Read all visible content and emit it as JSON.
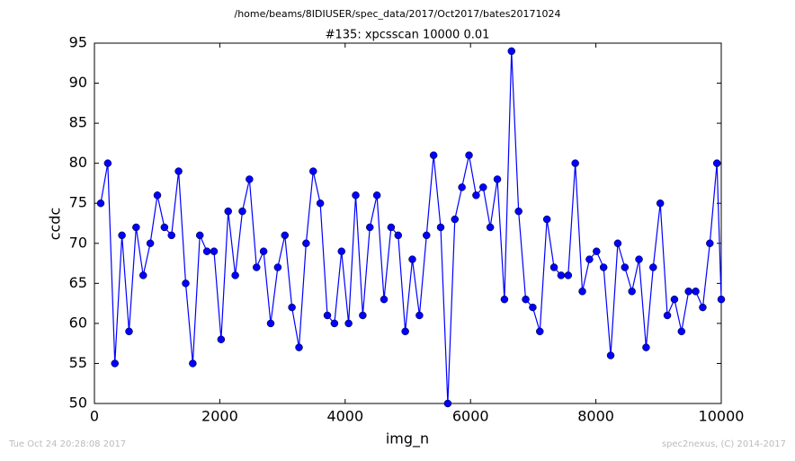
{
  "chart_data": {
    "type": "line",
    "suptitle": "/home/beams/8IDIUSER/spec_data/2017/Oct2017/bates20171024",
    "title": "#135: xpcsscan 10000 0.01",
    "x_label": "img_n",
    "y_label": "ccdc",
    "footer_left": "Tue Oct 24 20:28:08 2017",
    "footer_right": "spec2nexus, (C) 2014-2017",
    "xlim": [
      0,
      10000
    ],
    "xticks": [
      0,
      2000,
      4000,
      6000,
      8000,
      10000
    ],
    "ylim": [
      50,
      95
    ],
    "yticks": [
      50,
      55,
      60,
      65,
      70,
      75,
      80,
      85,
      90,
      95
    ],
    "x": [
      100,
      213,
      326,
      439,
      552,
      665,
      778,
      891,
      1004,
      1117,
      1230,
      1343,
      1456,
      1569,
      1682,
      1795,
      1908,
      2021,
      2134,
      2247,
      2360,
      2473,
      2586,
      2699,
      2812,
      2925,
      3038,
      3151,
      3264,
      3377,
      3490,
      3603,
      3716,
      3829,
      3942,
      4055,
      4168,
      4281,
      4394,
      4507,
      4620,
      4733,
      4846,
      4959,
      5072,
      5185,
      5298,
      5411,
      5524,
      5637,
      5750,
      5863,
      5976,
      6089,
      6202,
      6315,
      6428,
      6541,
      6654,
      6767,
      6880,
      6993,
      7106,
      7219,
      7332,
      7445,
      7558,
      7671,
      7784,
      7897,
      8010,
      8123,
      8236,
      8349,
      8462,
      8575,
      8688,
      8801,
      8914,
      9027,
      9140,
      9253,
      9366,
      9479,
      9592,
      9705,
      9818,
      9931,
      10000
    ],
    "series": [
      {
        "name": "ccdc",
        "color": "#0000ff",
        "values": [
          75,
          80,
          55,
          71,
          59,
          72,
          66,
          70,
          76,
          72,
          71,
          79,
          65,
          55,
          71,
          69,
          69,
          58,
          74,
          66,
          74,
          78,
          67,
          69,
          60,
          67,
          71,
          62,
          57,
          70,
          79,
          75,
          61,
          60,
          69,
          60,
          76,
          61,
          72,
          76,
          63,
          72,
          71,
          59,
          68,
          61,
          71,
          81,
          72,
          50,
          73,
          77,
          81,
          76,
          77,
          72,
          78,
          63,
          94,
          74,
          63,
          62,
          59,
          73,
          67,
          66,
          66,
          80,
          64,
          68,
          69,
          67,
          56,
          70,
          67,
          64,
          68,
          57,
          67,
          75,
          61,
          63,
          59,
          64,
          64,
          62,
          70,
          80,
          63
        ]
      }
    ]
  }
}
